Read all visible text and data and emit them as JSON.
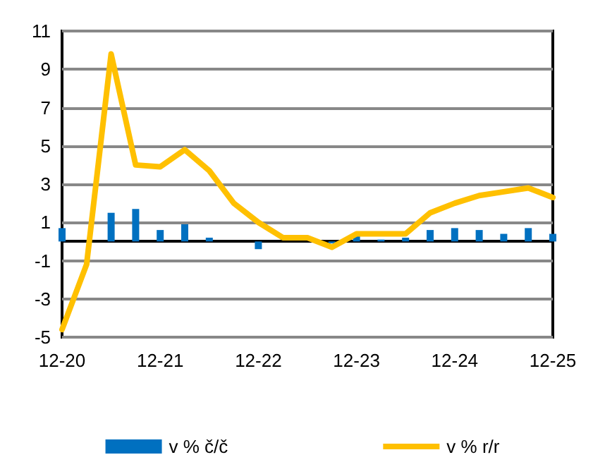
{
  "chart_data": {
    "type": "bar",
    "categories": [
      "12-20",
      null,
      null,
      null,
      "12-21",
      null,
      null,
      null,
      "12-22",
      null,
      null,
      null,
      "12-23",
      null,
      null,
      null,
      "12-24",
      null,
      null,
      null,
      "12-25"
    ],
    "series": [
      {
        "name": "v % č/č",
        "color": "#0070c0",
        "values": [
          0.7,
          0,
          1.5,
          1.7,
          0.6,
          0.9,
          0.2,
          0,
          -0.4,
          null,
          0,
          -0.1,
          0.3,
          0.1,
          0.2,
          0.6,
          0.7,
          0.6,
          0.4,
          0.7,
          0.4
        ]
      },
      {
        "name": "v % r/r",
        "type": "line",
        "color": "#ffc000",
        "values": [
          -4.6,
          -1.2,
          9.8,
          4.0,
          3.9,
          4.8,
          3.7,
          2.0,
          1.0,
          0.2,
          0.2,
          -0.3,
          0.4,
          0.4,
          0.4,
          1.5,
          2.0,
          2.4,
          2.6,
          2.8,
          2.3
        ]
      }
    ],
    "ylim": [
      -5,
      11
    ],
    "yticks": [
      -5,
      -3,
      -1,
      1,
      3,
      5,
      7,
      9,
      11
    ],
    "grid": "y",
    "legend": "bottom",
    "marker": "none",
    "line_style": "solid"
  }
}
